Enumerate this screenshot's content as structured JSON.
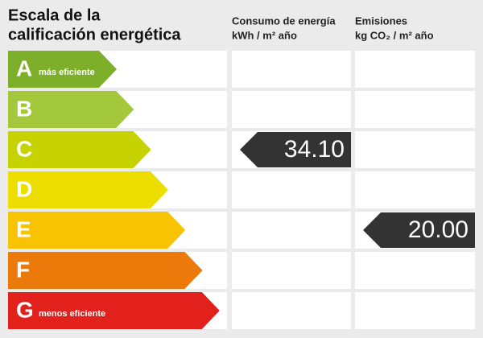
{
  "title": [
    "Escala de la",
    "calificación energética"
  ],
  "columns": [
    {
      "heading": "Consumo de energía",
      "unit": "kWh / m² año",
      "rating": "C",
      "value": "34.10"
    },
    {
      "heading": "Emisiones",
      "unit": "kg CO₂ / m² año",
      "rating": "E",
      "value": "20.00"
    }
  ],
  "ratings": [
    {
      "letter": "A",
      "color": "#7daf2a",
      "note": "más eficiente"
    },
    {
      "letter": "B",
      "color": "#a3c83b"
    },
    {
      "letter": "C",
      "color": "#c6d300"
    },
    {
      "letter": "D",
      "color": "#eede00"
    },
    {
      "letter": "E",
      "color": "#f8c300"
    },
    {
      "letter": "F",
      "color": "#eb7a0a"
    },
    {
      "letter": "G",
      "color": "#e2201c",
      "note": "menos eficiente"
    }
  ]
}
